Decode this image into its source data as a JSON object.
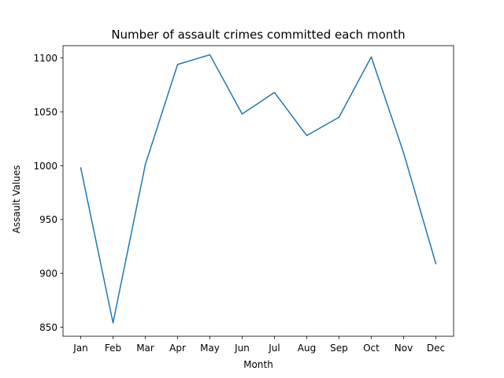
{
  "chart_data": {
    "type": "line",
    "title": "Number of assault crimes committed each month",
    "xlabel": "Month",
    "ylabel": "Assault Values",
    "categories": [
      "Jan",
      "Feb",
      "Mar",
      "Apr",
      "May",
      "Jun",
      "Jul",
      "Aug",
      "Sep",
      "Oct",
      "Nov",
      "Dec"
    ],
    "series": [
      {
        "values": [
          998,
          854,
          1001,
          1094,
          1103,
          1048,
          1068,
          1028,
          1045,
          1101,
          1012,
          909
        ],
        "color": "#1f77b4"
      }
    ],
    "ylim": [
      841.55,
      1111.45
    ],
    "yticks": [
      850,
      900,
      950,
      1000,
      1050,
      1100
    ],
    "ytick_labels": [
      "850",
      "900",
      "950",
      "1000",
      "1050",
      "1100"
    ],
    "grid": false,
    "legend": "none"
  }
}
